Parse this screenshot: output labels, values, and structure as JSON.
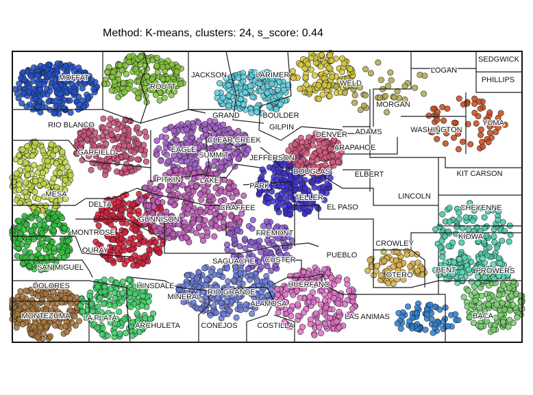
{
  "title": "Method: K-means, clusters: 24, s_score: 0.44",
  "method": "K-means",
  "clusters": 24,
  "s_score": 0.44,
  "counties": [
    "MOFFAT",
    "ROUTT",
    "JACKSON",
    "LARIMER",
    "WELD",
    "LOGAN",
    "SEDGWICK",
    "PHILLIPS",
    "RIO BLANCO",
    "GRAND",
    "BOULDER",
    "GILPIN",
    "MORGAN",
    "WASHINGTON",
    "YUMA",
    "GARFIELD",
    "EAGLE",
    "SUMMIT",
    "CLEAR CREEK",
    "DENVER",
    "ADAMS",
    "ARAPAHOE",
    "JEFFERSON",
    "DOUGLAS",
    "ELBERT",
    "KIT CARSON",
    "MESA",
    "PITKIN",
    "LAKE",
    "PARK",
    "TELLER",
    "EL PASO",
    "LINCOLN",
    "CHEYENNE",
    "DELTA",
    "GUNNISON",
    "CHAFFEE",
    "MONTROSE",
    "OURAY",
    "FREMONT",
    "CROWLEY",
    "KIOWA",
    "SAN MIGUEL",
    "SAGUACHE",
    "CUSTER",
    "PUEBLO",
    "OTERO",
    "BENT",
    "PROWERS",
    "DOLORES",
    "HINSDALE",
    "MINERAL",
    "RIO GRANDE",
    "ALAMOSA",
    "HUERFANO",
    "MONTEZUMA",
    "LA PLATA",
    "ARCHULETA",
    "CONEJOS",
    "COSTILLA",
    "LAS ANIMAS",
    "BACA"
  ],
  "cluster_colors": [
    "#1f4fc9",
    "#84c43a",
    "#5fd0e0",
    "#d6c83a",
    "#c0d94a",
    "#c9507a",
    "#a55fc9",
    "#3c2fd0",
    "#d8587f",
    "#d21f3a",
    "#2fbe3a",
    "#6a7bd8",
    "#a8763a",
    "#3fd06a",
    "#c05ab8",
    "#d8b04a",
    "#2a7fd0",
    "#c8481a",
    "#44c8a8",
    "#74d06a",
    "#5cd8b8",
    "#e070c8",
    "#8a5ad0",
    "#b0a84a"
  ]
}
